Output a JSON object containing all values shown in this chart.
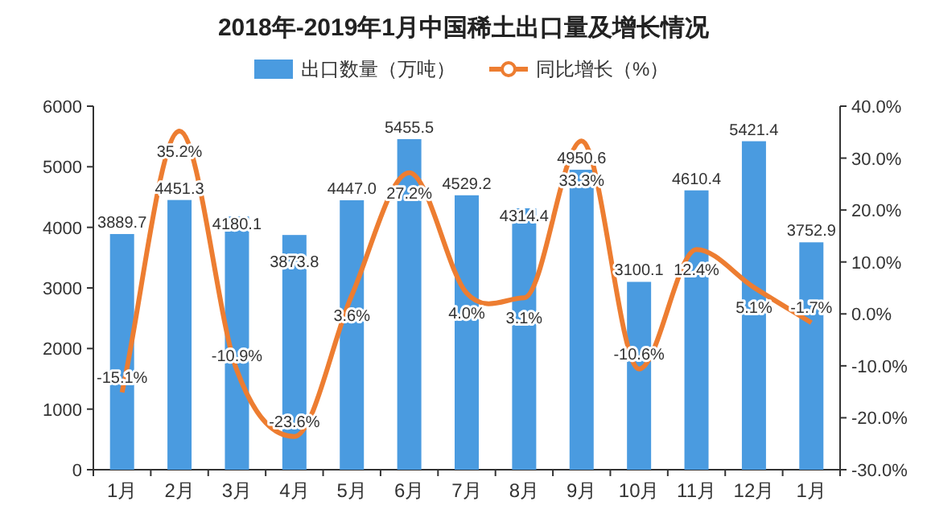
{
  "chart_data": {
    "type": "bar",
    "title": "2018年-2019年1月中国稀土出口量及增长情况",
    "categories": [
      "1月",
      "2月",
      "3月",
      "4月",
      "5月",
      "6月",
      "7月",
      "8月",
      "9月",
      "10月",
      "11月",
      "12月",
      "1月"
    ],
    "series": [
      {
        "name": "出口数量（万吨）",
        "color": "#4a9be0",
        "values": [
          3889.7,
          4451.3,
          4180.1,
          3873.8,
          4447.0,
          5455.5,
          4529.2,
          4314.4,
          4950.6,
          3100.1,
          4610.4,
          5421.4,
          3752.9
        ],
        "value_labels": [
          "3889.7",
          "4451.3",
          "4180.1",
          "3873.8",
          "4447.0",
          "5455.5",
          "4529.2",
          "4314.4",
          "4950.6",
          "3100.1",
          "4610.4",
          "5421.4",
          "3752.9"
        ]
      },
      {
        "name": "同比增长（%）",
        "type": "line",
        "axis": "y2",
        "color": "#ed7d31",
        "values": [
          -15.1,
          35.2,
          -10.9,
          -23.6,
          3.6,
          27.2,
          4.0,
          3.1,
          33.3,
          -10.6,
          12.4,
          5.1,
          -1.7
        ],
        "value_labels": [
          "-15.1%",
          "35.2%",
          "-10.9%",
          "-23.6%",
          "3.6%",
          "27.2%",
          "4.0%",
          "3.1%",
          "33.3%",
          "-10.6%",
          "12.4%",
          "5.1%",
          "-1.7%"
        ]
      }
    ],
    "ylim": [
      0,
      6000
    ],
    "yticks": [
      0,
      1000,
      2000,
      3000,
      4000,
      5000,
      6000
    ],
    "y2lim": [
      -30,
      40
    ],
    "y2ticks": [
      {
        "value": -30,
        "label": "-30.0%"
      },
      {
        "value": -20,
        "label": "-20.0%"
      },
      {
        "value": -10,
        "label": "-10.0%"
      },
      {
        "value": 0,
        "label": "0.0%"
      },
      {
        "value": 10,
        "label": "10.0%"
      },
      {
        "value": 20,
        "label": "20.0%"
      },
      {
        "value": 30,
        "label": "30.0%"
      },
      {
        "value": 40,
        "label": "40.0%"
      }
    ],
    "legend": "top"
  }
}
